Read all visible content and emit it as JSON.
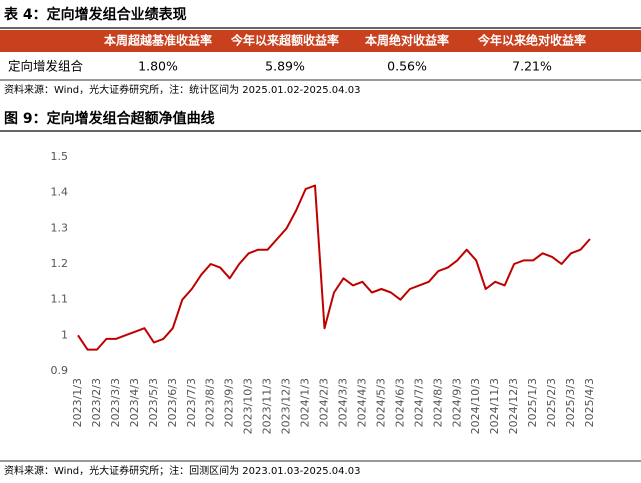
{
  "table": {
    "title": "表 4：定向增发组合业绩表现",
    "header": [
      "本周超越基准收益率",
      "今年以来超额收益率",
      "本周绝对收益率",
      "今年以来绝对收益率"
    ],
    "rows": [
      [
        "定向增发组合",
        "1.80%",
        "5.89%",
        "0.56%",
        "7.21%"
      ]
    ],
    "source": "资料来源：Wind，光大证券研究所，注：统计区间为 2025.01.02-2025.04.03"
  },
  "chart_data": {
    "type": "line",
    "title": "图 9：定向增发组合超额净值曲线",
    "categories": [
      "2023/1/3",
      null,
      "2023/2/3",
      null,
      "2023/3/3",
      null,
      "2023/4/3",
      null,
      "2023/5/3",
      null,
      "2023/6/3",
      null,
      "2023/7/3",
      null,
      "2023/8/3",
      null,
      "2023/9/3",
      null,
      "2023/10/3",
      null,
      "2023/11/3",
      null,
      "2023/12/3",
      null,
      "2024/1/3",
      null,
      "2024/2/3",
      null,
      "2024/3/3",
      null,
      "2024/4/3",
      null,
      "2024/5/3",
      null,
      "2024/6/3",
      null,
      "2024/7/3",
      null,
      "2024/8/3",
      null,
      "2024/9/3",
      null,
      "2024/10/3",
      null,
      "2024/11/3",
      null,
      "2024/12/3",
      null,
      "2025/1/3",
      null,
      "2025/2/3",
      null,
      "2025/3/3",
      null,
      "2025/4/3"
    ],
    "series": [
      {
        "color": "#c00000",
        "values": [
          1.0,
          0.96,
          0.96,
          0.99,
          0.99,
          1.0,
          1.01,
          1.02,
          0.98,
          0.99,
          1.02,
          1.1,
          1.13,
          1.17,
          1.2,
          1.19,
          1.16,
          1.2,
          1.23,
          1.24,
          1.24,
          1.27,
          1.3,
          1.35,
          1.41,
          1.42,
          1.02,
          1.12,
          1.16,
          1.14,
          1.15,
          1.12,
          1.13,
          1.12,
          1.1,
          1.13,
          1.14,
          1.15,
          1.18,
          1.19,
          1.21,
          1.24,
          1.21,
          1.13,
          1.15,
          1.14,
          1.2,
          1.21,
          1.21,
          1.23,
          1.22,
          1.2,
          1.23,
          1.24,
          1.27
        ]
      }
    ],
    "ylim": [
      0.9,
      1.5
    ],
    "yticks": [
      0.9,
      1,
      1.1,
      1.2,
      1.3,
      1.4,
      1.5
    ],
    "grid": false
  },
  "source": "资料来源：Wind，光大证券研究所；注：回测区间为 2023.01.03-2025.04.03"
}
